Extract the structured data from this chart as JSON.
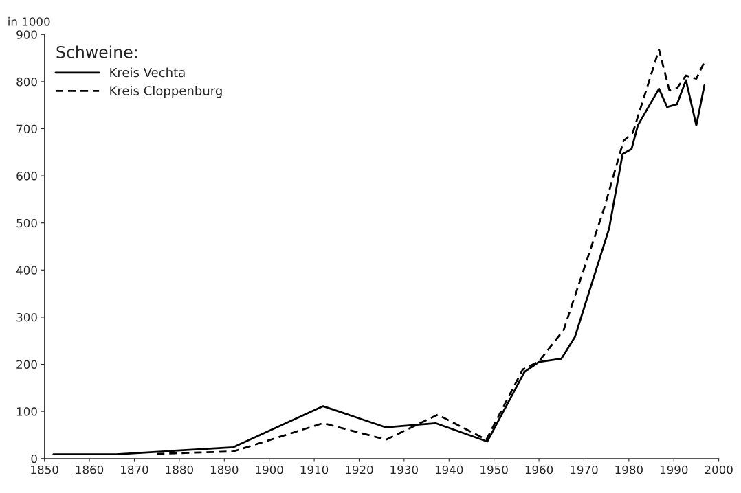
{
  "chart_data": {
    "type": "line",
    "ylabel": "in 1000",
    "legend_title": "Schweine:",
    "legend": "top left",
    "grid": false,
    "xlim": [
      1850,
      2000
    ],
    "xticks": [
      1850,
      1860,
      1870,
      1880,
      1890,
      1900,
      1910,
      1920,
      1930,
      1940,
      1950,
      1960,
      1970,
      1980,
      1990,
      2000
    ],
    "ylim": [
      0,
      900
    ],
    "yticks": [
      0,
      100,
      200,
      300,
      400,
      500,
      600,
      700,
      800,
      900
    ],
    "series": [
      {
        "name": "Kreis Vechta",
        "color": "#000000",
        "line_style": "solid",
        "x": [
          1852,
          1866,
          1892,
          1912,
          1926,
          1931,
          1937,
          1948.5,
          1956.8,
          1960,
          1965,
          1968,
          1975.6,
          1978.6,
          1980.6,
          1982,
          1986.7,
          1988.5,
          1990.7,
          1992.7,
          1995,
          1996.8
        ],
        "values": [
          9,
          9,
          24,
          111,
          66,
          70,
          75,
          36,
          184,
          205,
          212,
          258,
          488,
          646,
          657,
          707,
          785,
          746,
          752,
          803,
          707,
          792
        ]
      },
      {
        "name": "Kreis Cloppenburg",
        "color": "#000000",
        "line_style": "dashed",
        "x": [
          1875,
          1892,
          1912,
          1926,
          1937.5,
          1948.3,
          1956.4,
          1960,
          1965.5,
          1974.5,
          1978.8,
          1980.9,
          1986.7,
          1989,
          1990.7,
          1992.7,
          1995,
          1996.8
        ],
        "values": [
          10,
          15,
          75,
          40,
          93,
          40,
          189,
          206,
          273,
          531,
          674,
          692,
          868,
          782,
          786,
          813,
          806,
          842
        ]
      }
    ]
  }
}
